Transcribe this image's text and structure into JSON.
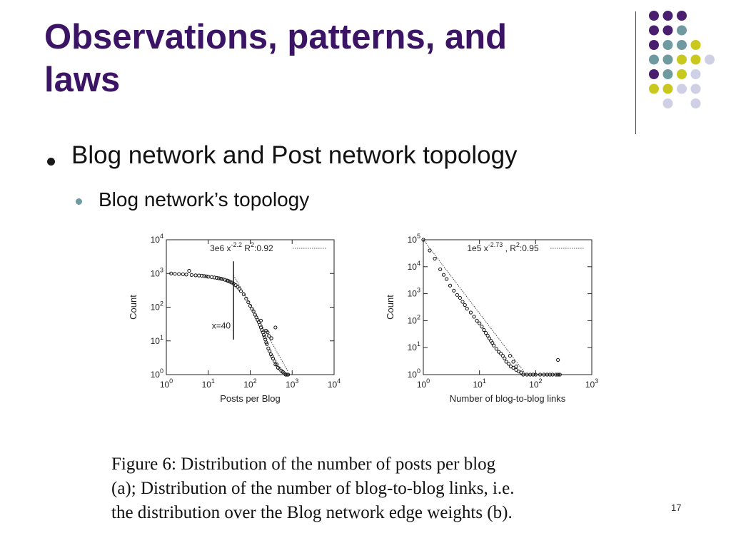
{
  "slide": {
    "title_line1": "Observations, patterns, and",
    "title_line2": "laws",
    "bullet1": "Blog network and Post network topology",
    "bullet2": "Blog network’s topology",
    "caption_lines": [
      "Figure 6:  Distribution of the number of posts per blog",
      "(a); Distribution of the number of blog-to-blog links, i.e.",
      "the distribution over the Blog network edge weights (b)."
    ],
    "page_number": "17"
  },
  "colors": {
    "title": "#3b1466",
    "purple": "#4b1f6f",
    "teal": "#6f9aa0",
    "lime": "#c8c81e",
    "lavender": "#cfd0e6"
  },
  "decor_dots": [
    [
      "purple",
      "purple",
      "purple",
      null,
      null
    ],
    [
      "purple",
      "purple",
      "teal",
      null,
      null
    ],
    [
      "purple",
      "teal",
      "teal",
      "lime",
      null
    ],
    [
      "teal",
      "teal",
      "lime",
      "lime",
      "lavender"
    ],
    [
      "purple",
      "teal",
      "lime",
      "lavender",
      null
    ],
    [
      "lime",
      "lime",
      "lavender",
      "lavender",
      null
    ],
    [
      null,
      "lavender",
      null,
      "lavender",
      null
    ]
  ],
  "chart_data": [
    {
      "type": "scatter",
      "xlabel": "Posts per Blog",
      "ylabel": "Count",
      "xscale": "log",
      "yscale": "log",
      "xlim": [
        1,
        10000
      ],
      "ylim": [
        1,
        10000
      ],
      "x_ticks": [
        "10^0",
        "10^1",
        "10^2",
        "10^3",
        "10^4"
      ],
      "y_ticks": [
        "10^0",
        "10^1",
        "10^2",
        "10^3",
        "10^4"
      ],
      "legend": {
        "prefix": "3e6 x",
        "exponent": "-2.2",
        "r2_label": "R",
        "r2_exp": "2",
        "r2_value": ":0.92"
      },
      "annotation": "x=40",
      "cutoff_x": 40,
      "fit": {
        "a": 3000000,
        "b": -2.2,
        "x_from": 40,
        "x_to": 800
      },
      "points": [
        [
          1.3,
          1000
        ],
        [
          1.6,
          980
        ],
        [
          2,
          960
        ],
        [
          2.5,
          950
        ],
        [
          3,
          930
        ],
        [
          3.5,
          1200
        ],
        [
          4,
          900
        ],
        [
          5,
          880
        ],
        [
          6,
          870
        ],
        [
          7,
          860
        ],
        [
          8,
          840
        ],
        [
          9,
          820
        ],
        [
          10,
          800
        ],
        [
          12,
          780
        ],
        [
          14,
          760
        ],
        [
          16,
          740
        ],
        [
          18,
          720
        ],
        [
          20,
          700
        ],
        [
          22,
          680
        ],
        [
          25,
          650
        ],
        [
          28,
          620
        ],
        [
          30,
          600
        ],
        [
          33,
          570
        ],
        [
          36,
          540
        ],
        [
          40,
          500
        ],
        [
          45,
          450
        ],
        [
          50,
          400
        ],
        [
          55,
          350
        ],
        [
          60,
          300
        ],
        [
          70,
          240
        ],
        [
          80,
          180
        ],
        [
          90,
          140
        ],
        [
          100,
          110
        ],
        [
          110,
          90
        ],
        [
          120,
          75
        ],
        [
          130,
          60
        ],
        [
          140,
          50
        ],
        [
          150,
          42
        ],
        [
          160,
          36
        ],
        [
          170,
          30
        ],
        [
          180,
          25
        ],
        [
          190,
          21
        ],
        [
          200,
          18
        ],
        [
          210,
          15
        ],
        [
          220,
          13
        ],
        [
          230,
          11
        ],
        [
          240,
          9
        ],
        [
          250,
          8
        ],
        [
          270,
          6
        ],
        [
          290,
          5
        ],
        [
          310,
          4
        ],
        [
          330,
          3.5
        ],
        [
          350,
          3
        ],
        [
          380,
          2.5
        ],
        [
          400,
          2
        ],
        [
          430,
          2
        ],
        [
          460,
          1.6
        ],
        [
          500,
          1.5
        ],
        [
          550,
          1.3
        ],
        [
          600,
          1.2
        ],
        [
          650,
          1.1
        ],
        [
          700,
          1
        ],
        [
          750,
          1
        ],
        [
          800,
          1
        ],
        [
          320,
          12
        ],
        [
          280,
          14
        ],
        [
          260,
          18
        ],
        [
          400,
          25
        ],
        [
          180,
          40
        ],
        [
          240,
          20
        ]
      ]
    },
    {
      "type": "scatter",
      "xlabel": "Number of blog-to-blog links",
      "ylabel": "Count",
      "xscale": "log",
      "yscale": "log",
      "xlim": [
        1,
        1000
      ],
      "ylim": [
        1,
        100000
      ],
      "x_ticks": [
        "10^0",
        "10^1",
        "10^2",
        "10^3"
      ],
      "y_ticks": [
        "10^0",
        "10^1",
        "10^2",
        "10^3",
        "10^4",
        "10^5"
      ],
      "legend": {
        "prefix": "1e5 x",
        "exponent": "-2.73",
        "r2_label": ", R",
        "r2_exp": "2",
        "r2_value": ":0.95"
      },
      "fit": {
        "a": 100000,
        "b": -2.73,
        "x_from": 1,
        "x_to": 68
      },
      "points": [
        [
          1,
          100000
        ],
        [
          1.3,
          40000
        ],
        [
          1.6,
          20000
        ],
        [
          2,
          8000
        ],
        [
          2.3,
          5000
        ],
        [
          2.6,
          3500
        ],
        [
          3,
          2000
        ],
        [
          3.5,
          1300
        ],
        [
          4,
          900
        ],
        [
          4.5,
          700
        ],
        [
          5,
          500
        ],
        [
          5.5,
          380
        ],
        [
          6,
          280
        ],
        [
          7,
          200
        ],
        [
          8,
          140
        ],
        [
          9,
          100
        ],
        [
          10,
          80
        ],
        [
          11,
          60
        ],
        [
          12,
          45
        ],
        [
          13,
          35
        ],
        [
          14,
          28
        ],
        [
          15,
          22
        ],
        [
          16,
          18
        ],
        [
          17,
          15
        ],
        [
          18,
          12
        ],
        [
          20,
          9
        ],
        [
          22,
          7
        ],
        [
          24,
          6
        ],
        [
          26,
          5
        ],
        [
          28,
          4
        ],
        [
          30,
          3
        ],
        [
          33,
          2.5
        ],
        [
          36,
          2
        ],
        [
          40,
          1.8
        ],
        [
          45,
          1.5
        ],
        [
          50,
          1.3
        ],
        [
          55,
          1.2
        ],
        [
          60,
          1
        ],
        [
          70,
          1
        ],
        [
          80,
          1
        ],
        [
          90,
          1
        ],
        [
          100,
          1
        ],
        [
          120,
          1
        ],
        [
          140,
          1
        ],
        [
          160,
          1
        ],
        [
          180,
          1
        ],
        [
          200,
          1
        ],
        [
          230,
          1
        ],
        [
          250,
          1
        ],
        [
          270,
          1
        ],
        [
          250,
          3.5
        ],
        [
          35,
          5
        ],
        [
          40,
          3
        ],
        [
          45,
          2
        ]
      ]
    }
  ]
}
